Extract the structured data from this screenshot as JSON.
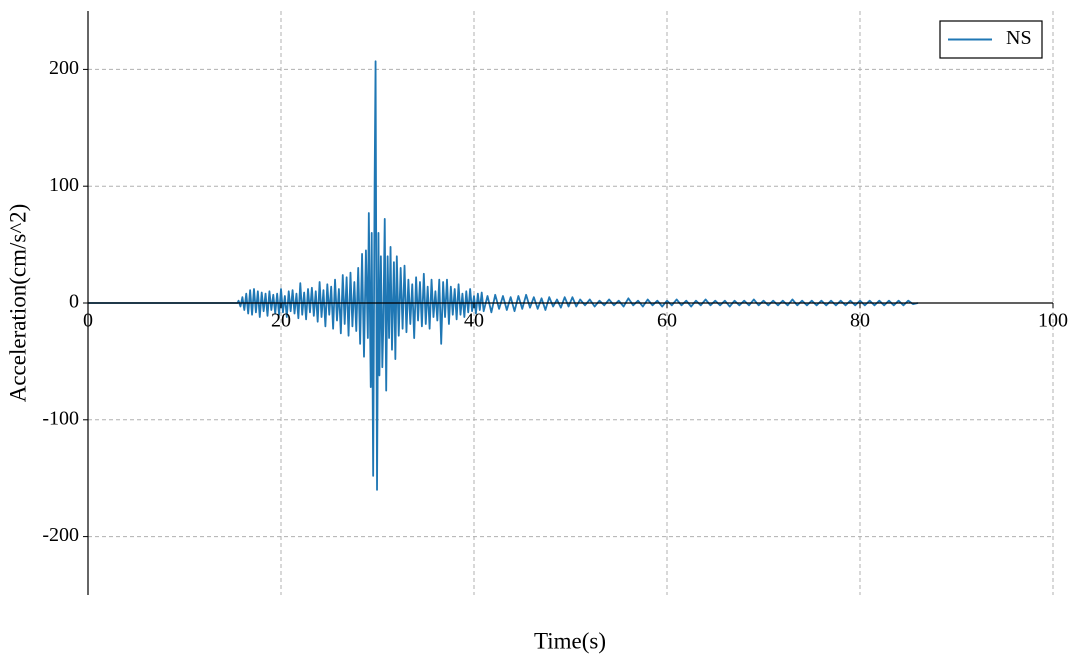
{
  "chart_data": {
    "type": "line",
    "xlabel": "Time(s)",
    "ylabel": "Acceleration(cm/s^2)",
    "xlim": [
      0,
      100
    ],
    "ylim": [
      -250,
      250
    ],
    "xticks": [
      0,
      20,
      40,
      60,
      80,
      100
    ],
    "yticks": [
      -200,
      -100,
      0,
      100,
      200
    ],
    "grid": true,
    "legend": "upper right",
    "x": [
      0,
      15.5,
      15.6,
      15.8,
      16.0,
      16.2,
      16.4,
      16.6,
      16.8,
      17.0,
      17.2,
      17.4,
      17.6,
      17.8,
      18.0,
      18.2,
      18.4,
      18.6,
      18.8,
      19.0,
      19.2,
      19.4,
      19.6,
      19.8,
      20.0,
      20.2,
      20.4,
      20.6,
      20.8,
      21.0,
      21.2,
      21.4,
      21.6,
      21.8,
      22.0,
      22.2,
      22.4,
      22.6,
      22.8,
      23.0,
      23.2,
      23.4,
      23.6,
      23.8,
      24.0,
      24.2,
      24.4,
      24.6,
      24.8,
      25.0,
      25.2,
      25.4,
      25.6,
      25.8,
      26.0,
      26.2,
      26.4,
      26.6,
      26.8,
      27.0,
      27.2,
      27.4,
      27.6,
      27.8,
      28.0,
      28.2,
      28.4,
      28.6,
      28.8,
      29.0,
      29.1,
      29.3,
      29.4,
      29.55,
      29.7,
      29.8,
      29.95,
      30.1,
      30.2,
      30.35,
      30.5,
      30.6,
      30.75,
      30.9,
      31.05,
      31.2,
      31.35,
      31.5,
      31.7,
      31.85,
      32.0,
      32.2,
      32.4,
      32.6,
      32.8,
      33.0,
      33.2,
      33.4,
      33.6,
      33.8,
      34.0,
      34.2,
      34.4,
      34.6,
      34.8,
      35.0,
      35.2,
      35.4,
      35.6,
      35.8,
      36.0,
      36.2,
      36.4,
      36.6,
      36.8,
      37.0,
      37.2,
      37.4,
      37.6,
      37.8,
      38.0,
      38.2,
      38.4,
      38.6,
      38.8,
      39.0,
      39.2,
      39.4,
      39.6,
      39.8,
      40.0,
      40.2,
      40.4,
      40.6,
      40.8,
      41.0,
      41.4,
      41.8,
      42.2,
      42.6,
      43.0,
      43.4,
      43.8,
      44.2,
      44.6,
      45.0,
      45.4,
      45.8,
      46.2,
      46.6,
      47.0,
      47.4,
      47.8,
      48.2,
      48.6,
      49.0,
      49.4,
      49.8,
      50.2,
      50.6,
      51.0,
      51.5,
      52.0,
      52.5,
      53.0,
      53.5,
      54.0,
      54.5,
      55.0,
      55.5,
      56.0,
      56.5,
      57.0,
      57.5,
      58.0,
      58.5,
      59.0,
      59.5,
      60.0,
      60.5,
      61.0,
      61.5,
      62.0,
      62.5,
      63.0,
      63.5,
      64.0,
      64.5,
      65.0,
      65.5,
      66.0,
      66.5,
      67.0,
      67.5,
      68.0,
      68.5,
      69.0,
      69.5,
      70.0,
      70.5,
      71.0,
      71.5,
      72.0,
      72.5,
      73.0,
      73.5,
      74.0,
      74.5,
      75.0,
      75.5,
      76.0,
      76.5,
      77.0,
      77.5,
      78.0,
      78.5,
      79.0,
      79.5,
      80.0,
      80.5,
      81.0,
      81.5,
      82.0,
      82.5,
      83.0,
      83.5,
      84.0,
      84.5,
      85.0,
      85.5,
      86.0
    ],
    "series": [
      {
        "name": "NS",
        "color": "#1f77b4",
        "values": [
          0,
          0,
          2,
          -3,
          5,
          -6,
          8,
          -9,
          11,
          -10,
          12,
          -8,
          10,
          -12,
          9,
          -7,
          8,
          -11,
          10,
          -6,
          7,
          -9,
          8,
          -10,
          12,
          -8,
          6,
          -12,
          10,
          -7,
          11,
          -9,
          8,
          -13,
          17,
          -10,
          9,
          -14,
          12,
          -8,
          13,
          -11,
          10,
          -16,
          18,
          -12,
          11,
          -20,
          16,
          -10,
          14,
          -22,
          20,
          -15,
          12,
          -26,
          24,
          -18,
          22,
          -28,
          26,
          -20,
          18,
          -24,
          30,
          -35,
          42,
          -46,
          45,
          -30,
          77,
          -72,
          60,
          -148,
          100,
          207,
          -160,
          60,
          -62,
          40,
          -55,
          -20,
          72,
          -75,
          40,
          -30,
          48,
          -40,
          35,
          -48,
          40,
          -28,
          30,
          -22,
          32,
          -25,
          20,
          -18,
          16,
          -30,
          22,
          -15,
          18,
          -20,
          25,
          -18,
          14,
          -22,
          20,
          -12,
          10,
          -15,
          20,
          -35,
          18,
          -12,
          20,
          -18,
          14,
          -10,
          12,
          -14,
          16,
          -10,
          8,
          -12,
          10,
          -8,
          12,
          -7,
          6,
          -9,
          8,
          -6,
          9,
          -7,
          6,
          -8,
          7,
          -5,
          6,
          -6,
          5,
          -7,
          6,
          -5,
          7,
          -4,
          5,
          -5,
          4,
          -6,
          5,
          -3,
          3,
          -4,
          5,
          -3,
          5,
          -3,
          3,
          -2,
          3,
          -3,
          2,
          -2,
          3,
          -2,
          2,
          -3,
          4,
          -2,
          2,
          -3,
          3,
          -2,
          2,
          -3,
          2,
          -2,
          3,
          -2,
          2,
          -3,
          2,
          -2,
          3,
          -2,
          2,
          -2,
          2,
          -3,
          2,
          -2,
          2,
          -2,
          3,
          -2,
          2,
          -2,
          2,
          -2,
          2,
          -2,
          3,
          -2,
          2,
          -2,
          2,
          -2,
          2,
          -2,
          2,
          -2,
          2,
          -2,
          2,
          -2,
          2,
          -2,
          2,
          -2,
          2,
          -2,
          2,
          -2,
          2,
          -2,
          2,
          -1,
          0
        ]
      }
    ]
  }
}
